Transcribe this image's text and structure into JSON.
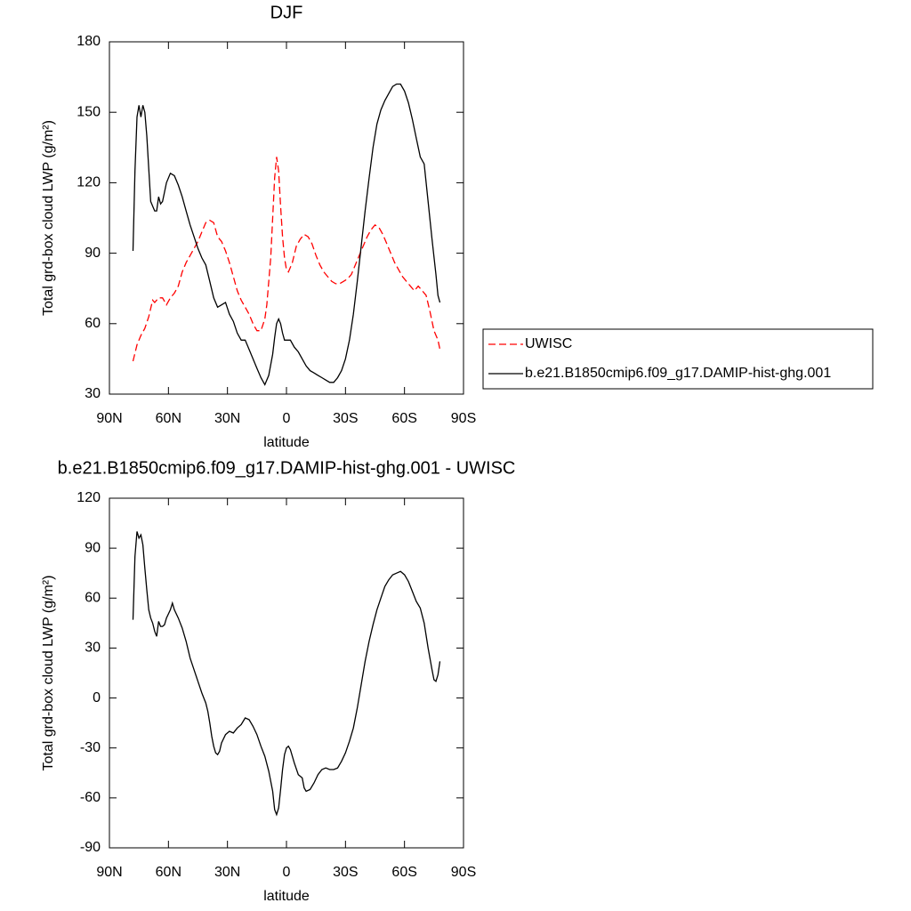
{
  "chart_data": [
    {
      "type": "line",
      "title": "DJF",
      "xlabel": "latitude",
      "ylabel": "Total grd-box cloud LWP (g/m²)",
      "xlim": [
        90,
        -90
      ],
      "xticks": [
        {
          "value": 90,
          "label": "90N"
        },
        {
          "value": 60,
          "label": "60N"
        },
        {
          "value": 30,
          "label": "30N"
        },
        0,
        {
          "value": -30,
          "label": "30S"
        },
        {
          "value": -60,
          "label": "60S"
        },
        {
          "value": -90,
          "label": "90S"
        }
      ],
      "ylim": [
        30,
        180
      ],
      "yticks": [
        30,
        60,
        90,
        120,
        150,
        180
      ],
      "legend": "right",
      "series": [
        {
          "name": "UWISC",
          "color": "#ff0000",
          "line_style": "dashed",
          "x": [
            78,
            76,
            74,
            72,
            70,
            68,
            67,
            65,
            63,
            61,
            59,
            57,
            55,
            53,
            51,
            49,
            47,
            45,
            43,
            41,
            39,
            37,
            35,
            33,
            31,
            29,
            27,
            25,
            23,
            21,
            19,
            17,
            15,
            13,
            11,
            10,
            8,
            7,
            6,
            5,
            4,
            3,
            2,
            1,
            0,
            -1,
            -3,
            -5,
            -7,
            -9,
            -11,
            -13,
            -15,
            -17,
            -19,
            -21,
            -23,
            -25,
            -27,
            -29,
            -31,
            -33,
            -35,
            -37,
            -39,
            -41,
            -43,
            -45,
            -47,
            -49,
            -51,
            -53,
            -55,
            -57,
            -59,
            -61,
            -63,
            -65,
            -67,
            -69,
            -71,
            -73,
            -75,
            -77,
            -78
          ],
          "values": [
            44,
            51,
            55,
            58,
            63,
            70,
            69,
            71,
            71,
            68,
            71,
            73,
            76,
            82,
            86,
            89,
            92,
            95,
            99,
            103,
            104,
            103,
            97,
            95,
            91,
            86,
            80,
            74,
            70,
            67,
            64,
            60,
            57,
            57,
            62,
            68,
            88,
            105,
            122,
            131,
            125,
            110,
            97,
            88,
            83,
            82,
            86,
            93,
            96,
            98,
            97,
            94,
            89,
            85,
            82,
            80,
            78,
            77,
            77,
            78,
            79,
            81,
            85,
            89,
            93,
            97,
            100,
            102,
            101,
            98,
            94,
            90,
            86,
            83,
            80,
            78,
            76,
            74,
            76,
            74,
            72,
            65,
            57,
            53,
            49
          ]
        },
        {
          "name": "b.e21.B1850cmip6.f09_g17.DAMIP-hist-ghg.001",
          "color": "#000000",
          "line_style": "solid",
          "x": [
            78,
            77,
            76,
            75,
            74,
            73,
            72,
            71,
            70,
            69,
            68,
            67,
            66,
            65,
            64,
            63,
            62,
            61,
            59,
            57,
            55,
            53,
            51,
            49,
            47,
            45,
            43,
            41,
            39,
            37,
            35,
            33,
            31,
            29,
            27,
            25,
            23,
            21,
            19,
            17,
            15,
            13,
            11,
            9,
            7,
            6,
            5,
            4,
            3,
            2,
            1,
            0,
            -2,
            -4,
            -6,
            -8,
            -10,
            -12,
            -14,
            -16,
            -18,
            -20,
            -22,
            -24,
            -26,
            -28,
            -30,
            -32,
            -34,
            -36,
            -38,
            -40,
            -42,
            -44,
            -46,
            -48,
            -50,
            -52,
            -54,
            -56,
            -58,
            -60,
            -62,
            -64,
            -66,
            -68,
            -70,
            -72,
            -74,
            -76,
            -77,
            -78
          ],
          "values": [
            91,
            125,
            148,
            153,
            148,
            153,
            150,
            140,
            126,
            112,
            110,
            108,
            108,
            114,
            111,
            112,
            116,
            120,
            124,
            123,
            119,
            114,
            108,
            102,
            97,
            92,
            88,
            85,
            78,
            71,
            67,
            68,
            69,
            64,
            61,
            56,
            53,
            53,
            49,
            45,
            41,
            37,
            34,
            38,
            47,
            54,
            60,
            62,
            60,
            56,
            53,
            53,
            53,
            50,
            48,
            45,
            42,
            40,
            39,
            38,
            37,
            36,
            35,
            35,
            37,
            40,
            45,
            53,
            64,
            78,
            93,
            108,
            122,
            135,
            145,
            151,
            155,
            158,
            161,
            162,
            162,
            159,
            154,
            147,
            139,
            131,
            128,
            112,
            96,
            81,
            72,
            69
          ]
        }
      ]
    },
    {
      "type": "line",
      "title": "b.e21.B1850cmip6.f09_g17.DAMIP-hist-ghg.001 - UWISC",
      "xlabel": "latitude",
      "ylabel": "Total grd-box cloud LWP (g/m²)",
      "xlim": [
        90,
        -90
      ],
      "xticks": [
        {
          "value": 90,
          "label": "90N"
        },
        {
          "value": 60,
          "label": "60N"
        },
        {
          "value": 30,
          "label": "30N"
        },
        0,
        {
          "value": -30,
          "label": "30S"
        },
        {
          "value": -60,
          "label": "60S"
        },
        {
          "value": -90,
          "label": "90S"
        }
      ],
      "ylim": [
        -90,
        120
      ],
      "yticks": [
        -90,
        -60,
        -30,
        0,
        30,
        60,
        90,
        120
      ],
      "series": [
        {
          "color": "#000000",
          "line_style": "solid",
          "x": [
            78,
            77,
            76,
            75,
            74,
            73,
            72,
            71,
            70,
            69,
            68,
            67,
            66,
            65,
            64,
            63,
            62,
            61,
            59,
            58,
            57,
            55,
            53,
            51,
            49,
            47,
            45,
            43,
            41,
            40,
            39,
            38,
            37,
            36,
            35,
            34,
            33,
            31,
            29,
            27,
            25,
            23,
            21,
            19,
            17,
            15,
            13,
            11,
            9,
            7,
            6,
            5,
            4,
            3,
            2,
            1,
            0,
            -1,
            -2,
            -4,
            -6,
            -8,
            -9,
            -10,
            -12,
            -14,
            -16,
            -18,
            -20,
            -22,
            -24,
            -26,
            -28,
            -30,
            -32,
            -34,
            -36,
            -38,
            -40,
            -42,
            -44,
            -46,
            -48,
            -50,
            -52,
            -54,
            -56,
            -58,
            -60,
            -62,
            -64,
            -66,
            -68,
            -70,
            -72,
            -74,
            -75,
            -76,
            -77,
            -78
          ],
          "values": [
            47,
            85,
            100,
            96,
            98,
            92,
            78,
            65,
            53,
            48,
            45,
            40,
            37,
            46,
            43,
            43,
            44,
            48,
            53,
            57,
            53,
            48,
            42,
            34,
            24,
            17,
            10,
            3,
            -3,
            -8,
            -15,
            -23,
            -29,
            -33,
            -34,
            -32,
            -27,
            -22,
            -20,
            -21,
            -18,
            -16,
            -12,
            -13,
            -17,
            -22,
            -29,
            -35,
            -44,
            -56,
            -67,
            -70,
            -66,
            -55,
            -43,
            -34,
            -30,
            -29,
            -31,
            -39,
            -46,
            -48,
            -54,
            -56,
            -55,
            -51,
            -46,
            -43,
            -42,
            -43,
            -43,
            -42,
            -38,
            -33,
            -26,
            -18,
            -6,
            8,
            22,
            34,
            44,
            53,
            60,
            67,
            71,
            74,
            75,
            76,
            74,
            70,
            64,
            58,
            54,
            45,
            30,
            17,
            11,
            10,
            14,
            22
          ]
        }
      ]
    }
  ]
}
